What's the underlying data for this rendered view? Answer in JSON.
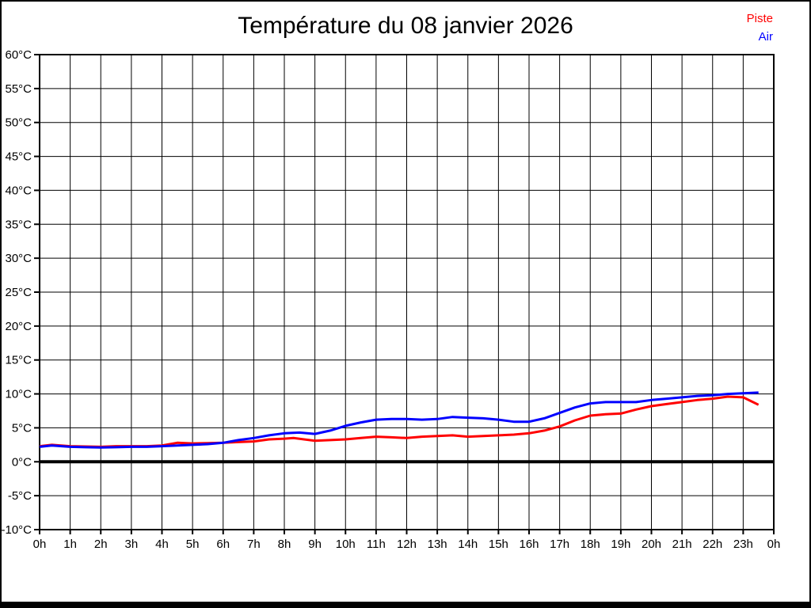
{
  "title": "Température du 08 janvier 2026",
  "legend": {
    "items": [
      {
        "label": "Piste",
        "color": "#ff0000"
      },
      {
        "label": "Air",
        "color": "#0000ff"
      }
    ]
  },
  "colors": {
    "background": "#ffffff",
    "frame": "#000000",
    "grid": "#000000",
    "zero_line": "#000000"
  },
  "chart_data": {
    "type": "line",
    "title": "Température du 08 janvier 2026",
    "xlabel": "",
    "ylabel": "",
    "xlim": [
      0,
      24
    ],
    "ylim": [
      -10,
      60
    ],
    "grid": true,
    "legend_position": "top-right",
    "x_ticks": [
      0,
      1,
      2,
      3,
      4,
      5,
      6,
      7,
      8,
      9,
      10,
      11,
      12,
      13,
      14,
      15,
      16,
      17,
      18,
      19,
      20,
      21,
      22,
      23,
      24
    ],
    "x_tick_labels": [
      "0h",
      "1h",
      "2h",
      "3h",
      "4h",
      "5h",
      "6h",
      "7h",
      "8h",
      "9h",
      "10h",
      "11h",
      "12h",
      "13h",
      "14h",
      "15h",
      "16h",
      "17h",
      "18h",
      "19h",
      "20h",
      "21h",
      "22h",
      "23h",
      "0h"
    ],
    "y_ticks": [
      60,
      55,
      50,
      45,
      40,
      35,
      30,
      25,
      20,
      15,
      10,
      5,
      0,
      -5,
      -10
    ],
    "y_tick_labels": [
      "60°C",
      "55°C",
      "50°C",
      "45°C",
      "40°C",
      "35°C",
      "30°C",
      "25°C",
      "20°C",
      "15°C",
      "10°C",
      "5°C",
      "0°C",
      "-5°C",
      "-10°C"
    ],
    "zero_line": {
      "value": 0,
      "stroke_width": 4
    },
    "series": [
      {
        "name": "Piste",
        "color": "#ff0000",
        "points": [
          [
            0,
            2.3
          ],
          [
            0.4,
            2.5
          ],
          [
            1,
            2.3
          ],
          [
            1.5,
            2.25
          ],
          [
            2,
            2.2
          ],
          [
            2.5,
            2.3
          ],
          [
            3,
            2.3
          ],
          [
            3.5,
            2.3
          ],
          [
            4,
            2.4
          ],
          [
            4.5,
            2.8
          ],
          [
            5,
            2.7
          ],
          [
            5.5,
            2.75
          ],
          [
            6,
            2.8
          ],
          [
            6.5,
            2.9
          ],
          [
            7,
            3.0
          ],
          [
            7.5,
            3.3
          ],
          [
            8,
            3.4
          ],
          [
            8.3,
            3.5
          ],
          [
            9,
            3.1
          ],
          [
            9.5,
            3.2
          ],
          [
            10,
            3.3
          ],
          [
            10.5,
            3.5
          ],
          [
            11,
            3.7
          ],
          [
            11.5,
            3.6
          ],
          [
            12,
            3.5
          ],
          [
            12.5,
            3.7
          ],
          [
            13,
            3.8
          ],
          [
            13.5,
            3.9
          ],
          [
            14,
            3.7
          ],
          [
            14.5,
            3.8
          ],
          [
            15,
            3.9
          ],
          [
            15.5,
            4.0
          ],
          [
            16,
            4.2
          ],
          [
            16.5,
            4.6
          ],
          [
            17,
            5.2
          ],
          [
            17.5,
            6.1
          ],
          [
            18,
            6.8
          ],
          [
            18.5,
            7.0
          ],
          [
            19,
            7.1
          ],
          [
            19.5,
            7.7
          ],
          [
            20,
            8.2
          ],
          [
            20.5,
            8.5
          ],
          [
            21,
            8.8
          ],
          [
            21.5,
            9.1
          ],
          [
            22,
            9.3
          ],
          [
            22.5,
            9.6
          ],
          [
            23,
            9.5
          ],
          [
            23.5,
            8.4
          ]
        ]
      },
      {
        "name": "Air",
        "color": "#0000ff",
        "points": [
          [
            0,
            2.2
          ],
          [
            0.4,
            2.4
          ],
          [
            1,
            2.2
          ],
          [
            1.5,
            2.15
          ],
          [
            2,
            2.1
          ],
          [
            2.5,
            2.15
          ],
          [
            3,
            2.2
          ],
          [
            3.5,
            2.2
          ],
          [
            4,
            2.3
          ],
          [
            4.5,
            2.4
          ],
          [
            5,
            2.5
          ],
          [
            5.5,
            2.6
          ],
          [
            6,
            2.8
          ],
          [
            6.5,
            3.2
          ],
          [
            7,
            3.5
          ],
          [
            7.5,
            3.9
          ],
          [
            8,
            4.2
          ],
          [
            8.5,
            4.3
          ],
          [
            9,
            4.1
          ],
          [
            9.5,
            4.6
          ],
          [
            10,
            5.3
          ],
          [
            10.5,
            5.8
          ],
          [
            11,
            6.2
          ],
          [
            11.5,
            6.3
          ],
          [
            12,
            6.3
          ],
          [
            12.5,
            6.2
          ],
          [
            13,
            6.3
          ],
          [
            13.5,
            6.6
          ],
          [
            14,
            6.5
          ],
          [
            14.5,
            6.4
          ],
          [
            15,
            6.2
          ],
          [
            15.5,
            5.9
          ],
          [
            16,
            5.9
          ],
          [
            16.5,
            6.4
          ],
          [
            17,
            7.2
          ],
          [
            17.5,
            8.0
          ],
          [
            18,
            8.6
          ],
          [
            18.5,
            8.8
          ],
          [
            19,
            8.8
          ],
          [
            19.5,
            8.8
          ],
          [
            20,
            9.1
          ],
          [
            20.5,
            9.3
          ],
          [
            21,
            9.5
          ],
          [
            21.5,
            9.7
          ],
          [
            22,
            9.8
          ],
          [
            22.5,
            10.0
          ],
          [
            23,
            10.1
          ],
          [
            23.5,
            10.2
          ]
        ]
      }
    ]
  }
}
